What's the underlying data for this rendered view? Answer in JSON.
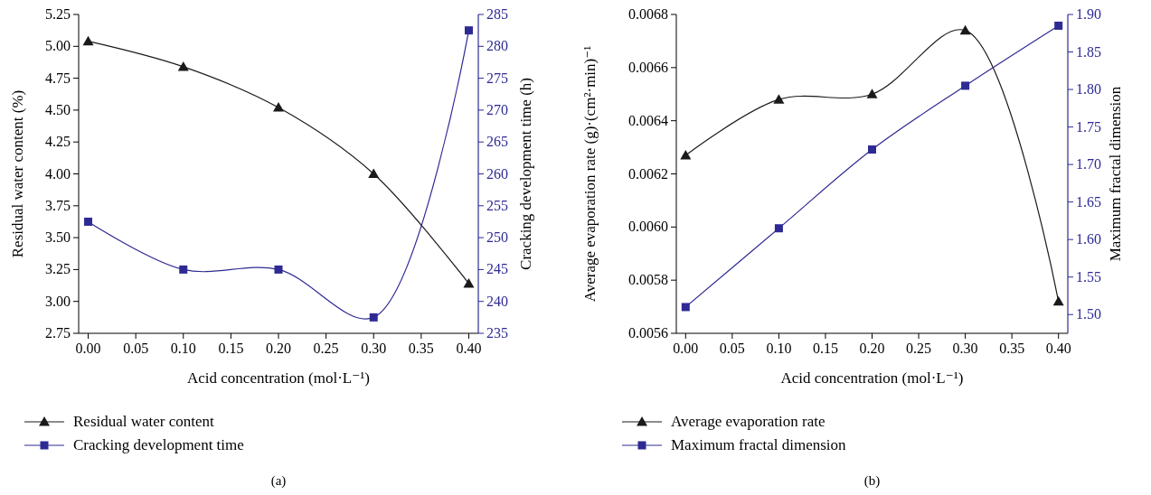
{
  "chart_data": [
    {
      "type": "line",
      "x": [
        0,
        0.1,
        0.2,
        0.3,
        0.4
      ],
      "xlabel": "Acid concentration (mol·L⁻¹)",
      "ylabel": "Residual water content (%)",
      "y2label": "Cracking development time (h)",
      "xlim": [
        -0.01,
        0.41
      ],
      "xticks": [
        {
          "value": 0,
          "label": "0.00"
        },
        0.05,
        {
          "value": 0.1,
          "label": "0.10"
        },
        0.15,
        {
          "value": 0.2,
          "label": "0.20"
        },
        0.25,
        {
          "value": 0.3,
          "label": "0.30"
        },
        0.35,
        {
          "value": 0.4,
          "label": "0.40"
        }
      ],
      "ylim": [
        2.75,
        5.25
      ],
      "yticks": [
        2.75,
        {
          "value": 3,
          "label": "3.00"
        },
        3.25,
        {
          "value": 3.5,
          "label": "3.50"
        },
        3.75,
        {
          "value": 4,
          "label": "4.00"
        },
        4.25,
        {
          "value": 4.5,
          "label": "4.50"
        },
        4.75,
        {
          "value": 5,
          "label": "5.00"
        },
        5.25
      ],
      "y2lim": [
        235,
        285
      ],
      "y2ticks": [
        235,
        240,
        245,
        250,
        255,
        260,
        265,
        270,
        275,
        280,
        285
      ],
      "series": [
        {
          "name": "Residual water content",
          "color": "#1a1a1a",
          "marker": "triangle",
          "values": [
            5.04,
            4.84,
            4.52,
            4.0,
            3.14
          ]
        },
        {
          "name": "Cracking development time",
          "color": "#2e2a94",
          "marker": "square",
          "axis": "y2",
          "values": [
            252.5,
            245,
            245,
            237.5,
            282.5
          ]
        }
      ],
      "legend": "bottom",
      "grid": false,
      "annotations": [
        "(a)"
      ]
    },
    {
      "type": "line",
      "x": [
        0,
        0.1,
        0.2,
        0.3,
        0.4
      ],
      "xlabel": "Acid concentration (mol·L⁻¹)",
      "ylabel": "Average evaporation rate (g)·(cm²·min)⁻¹",
      "y2label": "Maximum fractal dimension",
      "xlim": [
        -0.01,
        0.41
      ],
      "xticks": [
        {
          "value": 0,
          "label": "0.00"
        },
        0.05,
        {
          "value": 0.1,
          "label": "0.10"
        },
        0.15,
        {
          "value": 0.2,
          "label": "0.20"
        },
        0.25,
        {
          "value": 0.3,
          "label": "0.30"
        },
        0.35,
        {
          "value": 0.4,
          "label": "0.40"
        }
      ],
      "ylim": [
        0.0056,
        0.0068
      ],
      "yticks": [
        0.0056,
        0.0058,
        {
          "value": 0.006,
          "label": "0.0060"
        },
        0.0062,
        0.0064,
        0.0066,
        0.0068
      ],
      "y2lim": [
        1.475,
        1.9
      ],
      "y2ticks": [
        {
          "value": 1.5,
          "label": "1.50"
        },
        1.55,
        {
          "value": 1.6,
          "label": "1.60"
        },
        1.65,
        {
          "value": 1.7,
          "label": "1.70"
        },
        1.75,
        {
          "value": 1.8,
          "label": "1.80"
        },
        1.85,
        {
          "value": 1.9,
          "label": "1.90"
        }
      ],
      "series": [
        {
          "name": "Average evaporation rate",
          "color": "#1a1a1a",
          "marker": "triangle",
          "values": [
            0.00627,
            0.00648,
            0.0065,
            0.00674,
            0.00572
          ]
        },
        {
          "name": "Maximum fractal dimension",
          "color": "#2e2a94",
          "marker": "square",
          "axis": "y2",
          "values": [
            1.51,
            1.615,
            1.72,
            1.805,
            1.885
          ]
        }
      ],
      "legend": "bottom",
      "grid": false,
      "annotations": [
        "(b)"
      ]
    }
  ]
}
